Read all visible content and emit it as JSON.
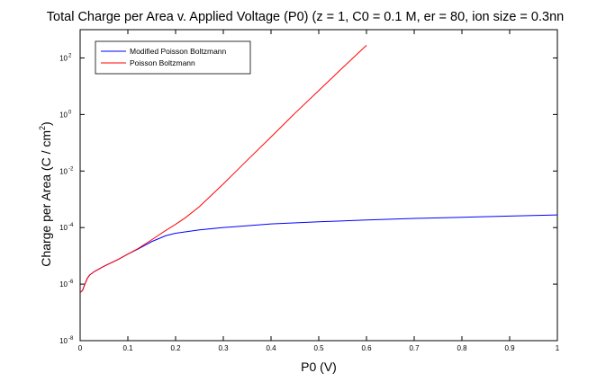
{
  "chart_data": {
    "type": "line",
    "title": "Total Charge per Area v. Applied Voltage (P0) (z = 1, C0 = 0.1 M, er = 80, ion size = 0.3nn",
    "xlabel": "P0 (V)",
    "ylabel": "Charge per Area (C / cm",
    "ylabel_exp": "2",
    "ylabel_end": ")",
    "xlim": [
      0,
      1
    ],
    "ylim": [
      1e-08,
      1000.0
    ],
    "yscale": "log",
    "grid": false,
    "legend_position": "top-left",
    "x_ticks": [
      "0",
      "0.1",
      "0.2",
      "0.3",
      "0.4",
      "0.5",
      "0.6",
      "0.7",
      "0.8",
      "0.9",
      "1"
    ],
    "y_ticks": [
      {
        "base": "10",
        "exp": "-8"
      },
      {
        "base": "10",
        "exp": "-6"
      },
      {
        "base": "10",
        "exp": "-4"
      },
      {
        "base": "10",
        "exp": "-2"
      },
      {
        "base": "10",
        "exp": "0"
      },
      {
        "base": "10",
        "exp": "2"
      }
    ],
    "series": [
      {
        "name": "Modified Poisson Boltzmann",
        "color": "#0000ff",
        "x": [
          0.0,
          0.005,
          0.01,
          0.015,
          0.02,
          0.03,
          0.05,
          0.08,
          0.1,
          0.12,
          0.15,
          0.18,
          0.2,
          0.25,
          0.3,
          0.4,
          0.5,
          0.6,
          0.7,
          0.8,
          0.9,
          1.0
        ],
        "y": [
          5e-07,
          6e-07,
          1e-06,
          1.6e-06,
          2.1e-06,
          2.8e-06,
          4.3e-06,
          7.5e-06,
          1.15e-05,
          1.7e-05,
          3.2e-05,
          5.2e-05,
          6.3e-05,
          8.3e-05,
          0.0001,
          0.000135,
          0.00016,
          0.000185,
          0.00021,
          0.00023,
          0.000255,
          0.00028
        ]
      },
      {
        "name": "Poisson Boltzmann",
        "color": "#ff0000",
        "x": [
          0.0,
          0.005,
          0.01,
          0.015,
          0.02,
          0.03,
          0.05,
          0.08,
          0.1,
          0.12,
          0.15,
          0.18,
          0.2,
          0.22,
          0.25,
          0.3,
          0.35,
          0.4,
          0.45,
          0.5,
          0.55,
          0.6
        ],
        "y": [
          5e-07,
          6e-07,
          1e-06,
          1.6e-06,
          2.1e-06,
          2.8e-06,
          4.3e-06,
          7.5e-06,
          1.15e-05,
          1.75e-05,
          3.7e-05,
          8e-05,
          0.00013,
          0.00022,
          0.00055,
          0.0035,
          0.024,
          0.16,
          1.1,
          7.0,
          45,
          280
        ]
      }
    ]
  }
}
